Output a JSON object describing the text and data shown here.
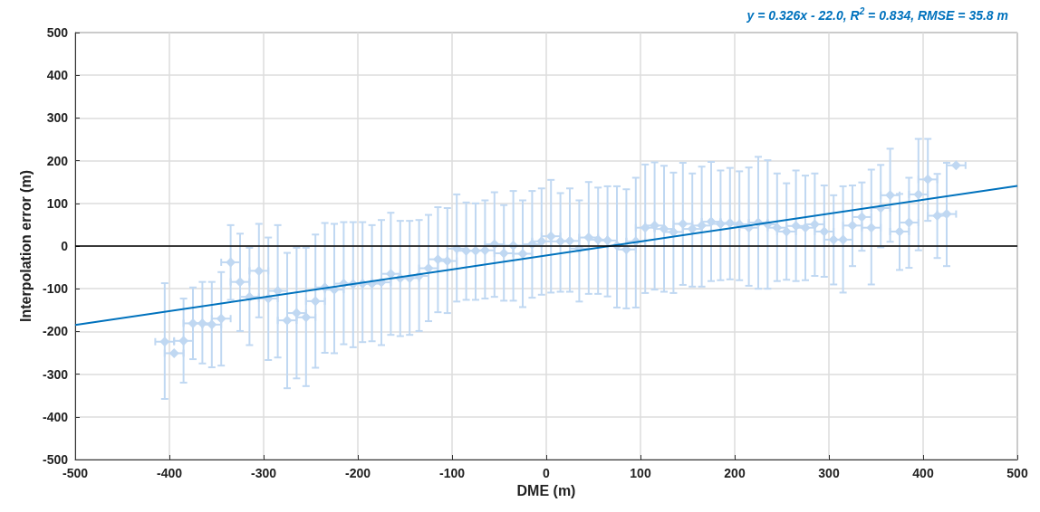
{
  "chart_data": {
    "type": "scatter",
    "xlabel": "DME (m)",
    "ylabel": "Interpolation error (m)",
    "annotations": [
      "y = 0.326x - 22.0, R$^{2}$ = 0.834, RMSE = 35.8 m"
    ],
    "xlim": [
      -500,
      500
    ],
    "xticks": [
      -500,
      -400,
      -300,
      -200,
      -100,
      0,
      100,
      200,
      300,
      400,
      500
    ],
    "ylim": [
      -500,
      500
    ],
    "yticks": [
      -500,
      -400,
      -300,
      -200,
      -100,
      0,
      100,
      200,
      300,
      400,
      500
    ],
    "grid": true,
    "marker": "diamond",
    "ref_lines": [
      {
        "axis": "y",
        "value": 0,
        "color": "#000000"
      }
    ],
    "series": [
      {
        "color": "#c0d8f2",
        "x": [
          -405,
          -395,
          -385,
          -375,
          -365,
          -355,
          -345,
          -335,
          -325,
          -315,
          -305,
          -295,
          -285,
          -275,
          -265,
          -255,
          -245,
          -235,
          -225,
          -215,
          -205,
          -195,
          -185,
          -175,
          -165,
          -155,
          -145,
          -135,
          -125,
          -115,
          -105,
          -95,
          -85,
          -75,
          -65,
          -55,
          -45,
          -35,
          -25,
          -15,
          -5,
          5,
          15,
          25,
          35,
          45,
          55,
          65,
          75,
          85,
          95,
          105,
          115,
          125,
          135,
          145,
          155,
          165,
          175,
          185,
          195,
          205,
          215,
          225,
          235,
          245,
          255,
          265,
          275,
          285,
          295,
          305,
          315,
          325,
          335,
          345,
          355,
          365,
          375,
          385,
          395,
          405,
          415,
          425,
          435
        ],
        "values": [
          -224,
          -251,
          -222,
          -181,
          -181,
          -184,
          -170,
          -38,
          -84,
          -119,
          -58,
          -123,
          -105,
          -174,
          -157,
          -167,
          -129,
          -97,
          -102,
          -88,
          -89,
          -88,
          -88,
          -85,
          -65,
          -75,
          -75,
          -70,
          -52,
          -31,
          -35,
          -6,
          -11,
          -11,
          -10,
          4,
          -17,
          1,
          -18,
          4,
          11,
          23,
          11,
          12,
          -6,
          20,
          15,
          13,
          1,
          -8,
          11,
          43,
          48,
          40,
          33,
          52,
          40,
          48,
          57,
          52,
          54,
          51,
          43,
          55,
          51,
          43,
          34,
          47,
          43,
          51,
          34,
          15,
          15,
          48,
          68,
          43,
          89,
          119,
          34,
          55,
          121,
          156,
          71,
          75,
          189
        ],
        "errors": [
          [
            -358,
            -87
          ],
          null,
          [
            -320,
            -123
          ],
          [
            -265,
            -97
          ],
          [
            -275,
            -84
          ],
          [
            -284,
            -84
          ],
          [
            -280,
            -61
          ],
          [
            -126,
            49
          ],
          [
            -199,
            29
          ],
          [
            -232,
            -4
          ],
          [
            -167,
            52
          ],
          [
            -267,
            20
          ],
          [
            -261,
            49
          ],
          [
            -333,
            -16
          ],
          [
            -310,
            -4
          ],
          [
            -328,
            -4
          ],
          [
            -285,
            27
          ],
          [
            -250,
            54
          ],
          [
            -251,
            52
          ],
          [
            -230,
            56
          ],
          [
            -237,
            56
          ],
          [
            -225,
            56
          ],
          [
            -223,
            49
          ],
          [
            -232,
            61
          ],
          [
            -208,
            78
          ],
          [
            -211,
            59
          ],
          [
            -208,
            59
          ],
          [
            -199,
            61
          ],
          [
            -176,
            73
          ],
          [
            -155,
            91
          ],
          [
            -157,
            89
          ],
          [
            -130,
            121
          ],
          [
            -126,
            102
          ],
          [
            -126,
            100
          ],
          [
            -123,
            107
          ],
          [
            -119,
            126
          ],
          [
            -128,
            96
          ],
          [
            -128,
            129
          ],
          [
            -143,
            107
          ],
          [
            -121,
            129
          ],
          [
            -114,
            135
          ],
          [
            -109,
            155
          ],
          [
            -107,
            124
          ],
          [
            -107,
            135
          ],
          [
            -130,
            107
          ],
          [
            -112,
            150
          ],
          [
            -112,
            137
          ],
          [
            -118,
            140
          ],
          [
            -144,
            140
          ],
          [
            -146,
            133
          ],
          [
            -144,
            160
          ],
          [
            -110,
            191
          ],
          [
            -102,
            196
          ],
          [
            -107,
            188
          ],
          [
            -110,
            172
          ],
          [
            -91,
            195
          ],
          [
            -95,
            170
          ],
          [
            -95,
            186
          ],
          [
            -82,
            197
          ],
          [
            -80,
            177
          ],
          [
            -78,
            183
          ],
          [
            -80,
            175
          ],
          [
            -93,
            184
          ],
          [
            -100,
            209
          ],
          [
            -100,
            201
          ],
          [
            -82,
            170
          ],
          [
            -79,
            147
          ],
          [
            -82,
            177
          ],
          [
            -80,
            165
          ],
          [
            -70,
            170
          ],
          [
            -72,
            142
          ],
          [
            -90,
            119
          ],
          [
            -109,
            140
          ],
          [
            -47,
            142
          ],
          [
            -11,
            149
          ],
          [
            -90,
            179
          ],
          [
            -3,
            190
          ],
          [
            10,
            228
          ],
          [
            -56,
            122
          ],
          [
            -51,
            160
          ],
          [
            -10,
            251
          ],
          [
            59,
            251
          ],
          [
            -28,
            169
          ],
          [
            -47,
            195
          ],
          null
        ],
        "xerrors": [
          10,
          10,
          10,
          10,
          10,
          10,
          10,
          10,
          10,
          10,
          10,
          10,
          10,
          10,
          10,
          10,
          10,
          10,
          10,
          10,
          10,
          10,
          10,
          10,
          10,
          10,
          10,
          10,
          10,
          10,
          10,
          10,
          10,
          10,
          10,
          10,
          10,
          10,
          10,
          10,
          10,
          10,
          10,
          10,
          10,
          10,
          10,
          10,
          10,
          10,
          10,
          10,
          10,
          10,
          10,
          10,
          10,
          10,
          10,
          10,
          10,
          10,
          10,
          10,
          10,
          10,
          10,
          10,
          10,
          10,
          10,
          10,
          10,
          10,
          10,
          10,
          10,
          10,
          10,
          10,
          10,
          10,
          10,
          10,
          10
        ]
      },
      {
        "type": "line",
        "color": "#0072bd",
        "marker": "none",
        "x": [
          -500,
          500
        ],
        "values": [
          -185,
          141
        ]
      }
    ]
  }
}
